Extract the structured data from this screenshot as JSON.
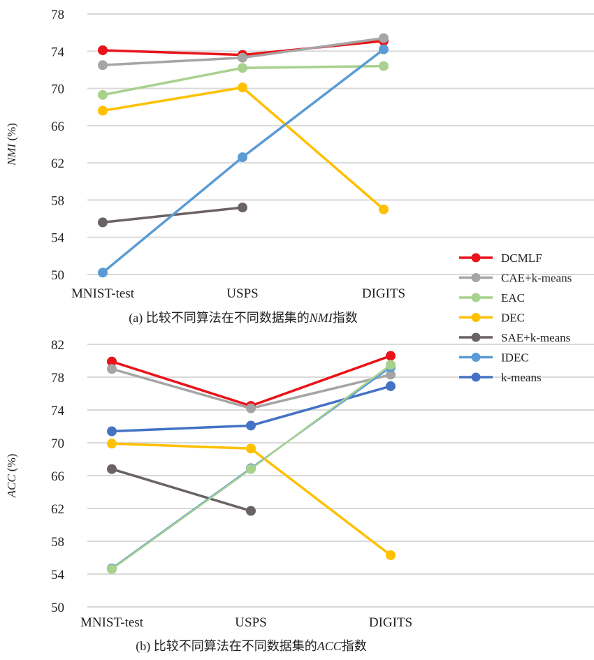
{
  "legend": [
    {
      "name": "DCMLF",
      "color": "#e8141a"
    },
    {
      "name": "CAE+k-means",
      "color": "#a5a5a5"
    },
    {
      "name": "EAC",
      "color": "#a9d18e"
    },
    {
      "name": "DEC",
      "color": "#ffc000"
    },
    {
      "name": "SAE+k-means",
      "color": "#6b6363"
    },
    {
      "name": "IDEC",
      "color": "#5b9bd5"
    },
    {
      "name": "k-means",
      "color": "#4472c4"
    }
  ],
  "chart_data": [
    {
      "type": "line",
      "title": "(a) 比较不同算法在不同数据集的NMI指数",
      "caption_prefix": "(a) 比较不同算法在不同数据集的",
      "caption_metric": "NMI",
      "caption_suffix": "指数",
      "ylabel_metric": "NMI",
      "ylabel_unit": " (%)",
      "categories": [
        "MNIST-test",
        "USPS",
        "DIGITS"
      ],
      "ylim": [
        50,
        78
      ],
      "yticks": [
        "50",
        "54",
        "58",
        "62",
        "66",
        "70",
        "74",
        "78"
      ],
      "grid": true,
      "series": [
        {
          "name": "DCMLF",
          "values": [
            74.1,
            73.6,
            75.1
          ]
        },
        {
          "name": "CAE+k-means",
          "values": [
            72.5,
            73.3,
            75.4
          ]
        },
        {
          "name": "EAC",
          "values": [
            69.3,
            72.2,
            72.4
          ]
        },
        {
          "name": "DEC",
          "values": [
            67.6,
            70.1,
            57.0
          ]
        },
        {
          "name": "SAE+k-means",
          "values": [
            55.6,
            57.2,
            null
          ]
        },
        {
          "name": "IDEC",
          "values": [
            50.2,
            62.6,
            74.2
          ]
        }
      ]
    },
    {
      "type": "line",
      "title": "(b) 比较不同算法在不同数据集的ACC指数",
      "caption_prefix": "(b) 比较不同算法在不同数据集的",
      "caption_metric": "ACC",
      "caption_suffix": "指数",
      "ylabel_metric": "ACC",
      "ylabel_unit": " (%)",
      "categories": [
        "MNIST-test",
        "USPS",
        "DIGITS"
      ],
      "ylim": [
        50,
        82
      ],
      "yticks": [
        "50",
        "54",
        "58",
        "62",
        "66",
        "70",
        "74",
        "78",
        "82"
      ],
      "grid": true,
      "series": [
        {
          "name": "DCMLF",
          "values": [
            79.9,
            74.5,
            80.6
          ]
        },
        {
          "name": "CAE+k-means",
          "values": [
            79.0,
            74.2,
            78.3
          ]
        },
        {
          "name": "k-means",
          "values": [
            71.4,
            72.1,
            76.9
          ]
        },
        {
          "name": "DEC",
          "values": [
            69.9,
            69.3,
            56.3
          ]
        },
        {
          "name": "SAE+k-means",
          "values": [
            66.8,
            61.7,
            null
          ]
        },
        {
          "name": "IDEC",
          "values": [
            54.7,
            66.9,
            79.2
          ]
        },
        {
          "name": "EAC",
          "values": [
            54.6,
            66.8,
            79.5
          ]
        }
      ]
    }
  ]
}
